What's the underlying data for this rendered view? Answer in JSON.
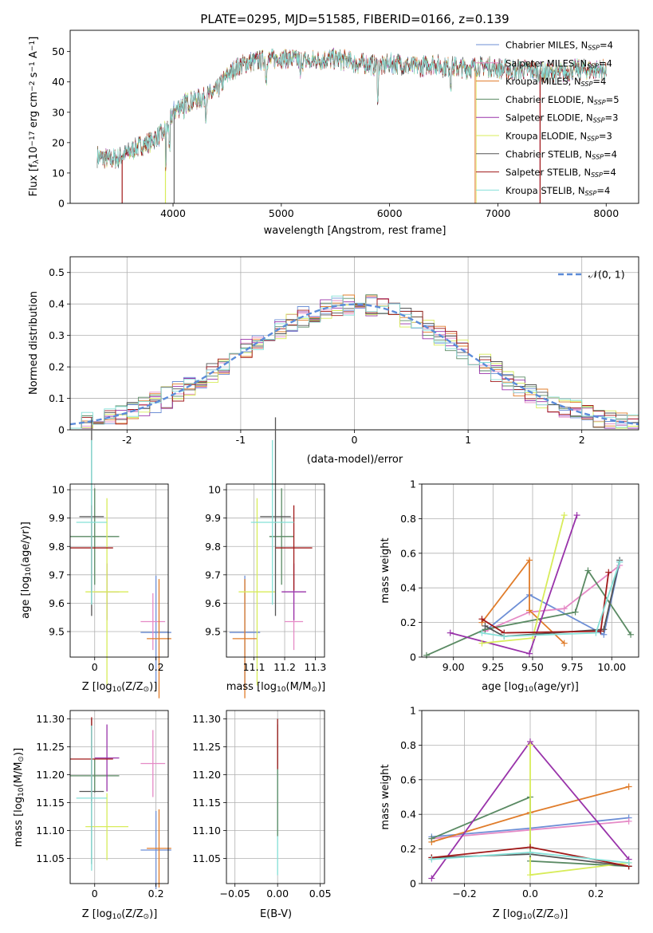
{
  "figure": {
    "title": "PLATE=0295, MJD=51585, FIBERID=0166, z=0.139"
  },
  "series_colors": {
    "Chabrier MILES": "#6d8fd6",
    "Salpeter MILES": "#e58ac6",
    "Kroupa MILES": "#e07c2a",
    "Chabrier ELODIE": "#5a8a63",
    "Salpeter ELODIE": "#9933aa",
    "Kroupa ELODIE": "#d8ec5a",
    "Chabrier STELIB": "#555555",
    "Salpeter STELIB": "#a11919",
    "Kroupa STELIB": "#85e0d8"
  },
  "chart_data": [
    {
      "id": "spectrum",
      "type": "line",
      "title": "PLATE=0295, MJD=51585, FIBERID=0166, z=0.139",
      "xlabel": "wavelength [Angstrom, rest frame]",
      "ylabel_main": "Flux [f",
      "ylabel_sub": "λ",
      "ylabel_rest": "10",
      "ylabel_exp1": "−17",
      "ylabel_mid": " erg cm",
      "ylabel_exp2": "−2",
      "ylabel_mid2": " s",
      "ylabel_exp3": "−1",
      "ylabel_end": " A",
      "ylabel_exp4": "−1",
      "ylabel_close": "]",
      "xlim": [
        3050,
        8300
      ],
      "ylim": [
        0,
        57
      ],
      "xticks": [
        4000,
        5000,
        6000,
        7000,
        8000
      ],
      "yticks": [
        0,
        10,
        20,
        30,
        40,
        50
      ],
      "legend_position": "top-right",
      "legend": [
        {
          "label": "Chabrier MILES, N",
          "sub": "SSP",
          "tail": "=4"
        },
        {
          "label": "Salpeter MILES, N",
          "sub": "SSP",
          "tail": "=4"
        },
        {
          "label": "Kroupa MILES, N",
          "sub": "SSP",
          "tail": "=4"
        },
        {
          "label": "Chabrier ELODIE, N",
          "sub": "SSP",
          "tail": "=5"
        },
        {
          "label": "Salpeter ELODIE, N",
          "sub": "SSP",
          "tail": "=3"
        },
        {
          "label": "Kroupa ELODIE, N",
          "sub": "SSP",
          "tail": "=3"
        },
        {
          "label": "Chabrier STELIB, N",
          "sub": "SSP",
          "tail": "=4"
        },
        {
          "label": "Salpeter STELIB, N",
          "sub": "SSP",
          "tail": "=4"
        },
        {
          "label": "Kroupa STELIB, N",
          "sub": "SSP",
          "tail": "=4"
        }
      ],
      "continuum": [
        [
          3300,
          15.5
        ],
        [
          3400,
          14.5
        ],
        [
          3500,
          15
        ],
        [
          3600,
          17
        ],
        [
          3700,
          19
        ],
        [
          3800,
          20.5
        ],
        [
          3900,
          23
        ],
        [
          3950,
          25
        ],
        [
          4000,
          30
        ],
        [
          4100,
          33
        ],
        [
          4200,
          34
        ],
        [
          4300,
          35
        ],
        [
          4400,
          37
        ],
        [
          4500,
          42
        ],
        [
          4600,
          45
        ],
        [
          4700,
          46.5
        ],
        [
          4800,
          47
        ],
        [
          4900,
          47.5
        ],
        [
          5000,
          48
        ],
        [
          5100,
          47.5
        ],
        [
          5200,
          47
        ],
        [
          5300,
          47
        ],
        [
          5400,
          47.5
        ],
        [
          5500,
          47.5
        ],
        [
          5600,
          47
        ],
        [
          5700,
          46
        ],
        [
          5800,
          46
        ],
        [
          5900,
          45
        ],
        [
          6000,
          46
        ],
        [
          6100,
          46
        ],
        [
          6200,
          45
        ],
        [
          6300,
          45
        ],
        [
          6400,
          46
        ],
        [
          6500,
          45
        ],
        [
          6600,
          45
        ],
        [
          6700,
          44.5
        ],
        [
          6800,
          45
        ],
        [
          6900,
          45
        ],
        [
          7000,
          44.5
        ],
        [
          7100,
          44
        ],
        [
          7200,
          44
        ],
        [
          7300,
          44
        ],
        [
          7400,
          43
        ],
        [
          7500,
          43
        ],
        [
          7600,
          43
        ],
        [
          7700,
          44
        ],
        [
          7800,
          44
        ],
        [
          7900,
          44
        ],
        [
          8000,
          44
        ]
      ]
    },
    {
      "id": "residuals",
      "type": "bar",
      "xlabel": "(data-model)/error",
      "ylabel": "Normed distribution",
      "xlim": [
        -2.5,
        2.5
      ],
      "ylim": [
        0,
        0.55
      ],
      "xticks": [
        -2,
        -1,
        0,
        1,
        2
      ],
      "yticks": [
        0.0,
        0.1,
        0.2,
        0.3,
        0.4,
        0.5
      ],
      "grid": true,
      "legend_position": "top-right",
      "legend": [
        {
          "label": "𝒩(0, 1)"
        }
      ],
      "bin_width": 0.1
    },
    {
      "id": "age_vs_Z",
      "type": "scatter",
      "xlabel": "Z [log",
      "xlabel_sub": "10",
      "xlabel_rest": "(Z/Z",
      "xlabel_sub2": "⊙",
      "xlabel_end": ")]",
      "ylabel": "age  [log",
      "ylabel_sub": "10",
      "ylabel_rest": "(age/yr)]",
      "xlim": [
        -0.08,
        0.24
      ],
      "ylim": [
        9.41,
        10.02
      ],
      "xticks": [
        0.0,
        0.2
      ],
      "yticks": [
        9.5,
        9.6,
        9.7,
        9.8,
        9.9,
        10.0
      ],
      "grid": true,
      "points": [
        {
          "series": "Chabrier MILES",
          "x": 0.2,
          "y": 9.497,
          "xerr": 0.05,
          "yerr": 0.2
        },
        {
          "series": "Salpeter MILES",
          "x": 0.19,
          "y": 9.535,
          "xerr": 0.04,
          "yerr": 0.1
        },
        {
          "series": "Kroupa MILES",
          "x": 0.21,
          "y": 9.475,
          "xerr": 0.04,
          "yerr": 0.21
        },
        {
          "series": "Chabrier ELODIE",
          "x": 0.0,
          "y": 9.835,
          "xerr": 0.08,
          "yerr": 0.17
        },
        {
          "series": "Salpeter ELODIE",
          "x": 0.04,
          "y": 9.64,
          "xerr": 0.04,
          "yerr": 0.1
        },
        {
          "series": "Kroupa ELODIE",
          "x": 0.04,
          "y": 9.64,
          "xerr": 0.07,
          "yerr": 0.33
        },
        {
          "series": "Chabrier STELIB",
          "x": -0.01,
          "y": 9.905,
          "xerr": 0.04,
          "yerr": 0.35
        },
        {
          "series": "Salpeter STELIB",
          "x": -0.01,
          "y": 9.795,
          "xerr": 0.07,
          "yerr": 0.15
        },
        {
          "series": "Kroupa STELIB",
          "x": -0.01,
          "y": 9.885,
          "xerr": 0.05,
          "yerr": 0.29
        }
      ]
    },
    {
      "id": "age_vs_mass",
      "type": "scatter",
      "xlabel": "mass [log",
      "xlabel_sub": "10",
      "xlabel_rest": "(M/M",
      "xlabel_sub2": "⊙",
      "xlabel_end": ")]",
      "xlim": [
        11.01,
        11.33
      ],
      "ylim": [
        9.41,
        10.02
      ],
      "xticks": [
        11.1,
        11.2,
        11.3
      ],
      "yticks": [
        9.5,
        9.6,
        9.7,
        9.8,
        9.9,
        10.0
      ],
      "grid": true,
      "points": [
        {
          "series": "Chabrier MILES",
          "x": 11.07,
          "y": 9.497,
          "xerr": 0.05,
          "yerr": 0.2
        },
        {
          "series": "Salpeter MILES",
          "x": 11.23,
          "y": 9.535,
          "xerr": 0.03,
          "yerr": 0.1
        },
        {
          "series": "Kroupa MILES",
          "x": 11.07,
          "y": 9.475,
          "xerr": 0.04,
          "yerr": 0.21
        },
        {
          "series": "Chabrier ELODIE",
          "x": 11.19,
          "y": 9.835,
          "xerr": 0.04,
          "yerr": 0.17
        },
        {
          "series": "Salpeter ELODIE",
          "x": 11.23,
          "y": 9.64,
          "xerr": 0.04,
          "yerr": 0.1
        },
        {
          "series": "Kroupa ELODIE",
          "x": 11.11,
          "y": 9.64,
          "xerr": 0.06,
          "yerr": 0.33
        },
        {
          "series": "Chabrier STELIB",
          "x": 11.17,
          "y": 9.905,
          "xerr": 0.05,
          "yerr": 0.35
        },
        {
          "series": "Salpeter STELIB",
          "x": 11.23,
          "y": 9.795,
          "xerr": 0.06,
          "yerr": 0.15
        },
        {
          "series": "Kroupa STELIB",
          "x": 11.16,
          "y": 9.885,
          "xerr": 0.07,
          "yerr": 0.29
        }
      ]
    },
    {
      "id": "massweight_vs_age",
      "type": "line",
      "xlabel": "age  [log",
      "xlabel_sub": "10",
      "xlabel_rest": "(age/yr)]",
      "ylabel": "mass weight",
      "xlim": [
        8.8,
        10.17
      ],
      "ylim": [
        0,
        1
      ],
      "xticks": [
        9.0,
        9.25,
        9.5,
        9.75,
        10.0
      ],
      "xticklabels": [
        "9.00",
        "9.25",
        "9.50",
        "9.75",
        "10.00"
      ],
      "yticks": [
        0.0,
        0.2,
        0.4,
        0.6,
        0.8,
        1.0
      ],
      "grid": true,
      "series": [
        {
          "name": "Chabrier MILES",
          "x": [
            9.2,
            9.48,
            9.95,
            10.05
          ],
          "y": [
            0.15,
            0.36,
            0.13,
            0.55
          ]
        },
        {
          "name": "Salpeter MILES",
          "x": [
            9.2,
            9.48,
            9.7,
            10.05
          ],
          "y": [
            0.15,
            0.26,
            0.28,
            0.53
          ]
        },
        {
          "name": "Kroupa MILES",
          "x": [
            9.18,
            9.48,
            9.48,
            9.7
          ],
          "y": [
            0.2,
            0.56,
            0.27,
            0.08
          ]
        },
        {
          "name": "Chabrier ELODIE",
          "x": [
            8.83,
            9.2,
            9.77,
            9.85,
            10.12
          ],
          "y": [
            0.01,
            0.16,
            0.26,
            0.5,
            0.13
          ]
        },
        {
          "name": "Salpeter ELODIE",
          "x": [
            8.98,
            9.48,
            9.78
          ],
          "y": [
            0.14,
            0.02,
            0.82
          ]
        },
        {
          "name": "Kroupa ELODIE",
          "x": [
            9.18,
            9.5,
            9.7
          ],
          "y": [
            0.08,
            0.11,
            0.82
          ]
        },
        {
          "name": "Chabrier STELIB",
          "x": [
            9.2,
            9.32,
            9.95,
            10.05
          ],
          "y": [
            0.18,
            0.12,
            0.16,
            0.56
          ]
        },
        {
          "name": "Salpeter STELIB",
          "x": [
            9.18,
            9.32,
            9.93,
            9.98
          ],
          "y": [
            0.22,
            0.14,
            0.15,
            0.49
          ]
        },
        {
          "name": "Kroupa STELIB",
          "x": [
            9.18,
            9.32,
            9.9,
            10.05
          ],
          "y": [
            0.14,
            0.12,
            0.14,
            0.55
          ]
        }
      ]
    },
    {
      "id": "mass_vs_Z",
      "type": "scatter",
      "xlabel": "Z [log",
      "xlabel_sub": "10",
      "xlabel_rest": "(Z/Z",
      "xlabel_sub2": "⊙",
      "xlabel_end": ")]",
      "ylabel": "mass [log",
      "ylabel_sub": "10",
      "ylabel_rest": "(M/M",
      "ylabel_sub2": "⊙",
      "ylabel_end": ")]",
      "xlim": [
        -0.08,
        0.24
      ],
      "ylim": [
        11.005,
        11.315
      ],
      "xticks": [
        0.0,
        0.2
      ],
      "yticks": [
        11.05,
        11.1,
        11.15,
        11.2,
        11.25,
        11.3
      ],
      "yticklabels": [
        "11.05",
        "11.10",
        "11.15",
        "11.20",
        "11.25",
        "11.30"
      ],
      "grid": true,
      "points": [
        {
          "series": "Chabrier MILES",
          "x": 0.2,
          "y": 11.065,
          "xerr": 0.05,
          "yerr": 0.07
        },
        {
          "series": "Salpeter MILES",
          "x": 0.19,
          "y": 11.22,
          "xerr": 0.04,
          "yerr": 0.06
        },
        {
          "series": "Kroupa MILES",
          "x": 0.21,
          "y": 11.068,
          "xerr": 0.04,
          "yerr": 0.07
        },
        {
          "series": "Chabrier ELODIE",
          "x": 0.0,
          "y": 11.198,
          "xerr": 0.08,
          "yerr": 0.03
        },
        {
          "series": "Salpeter ELODIE",
          "x": 0.04,
          "y": 11.23,
          "xerr": 0.04,
          "yerr": 0.06
        },
        {
          "series": "Kroupa ELODIE",
          "x": 0.04,
          "y": 11.107,
          "xerr": 0.07,
          "yerr": 0.06
        },
        {
          "series": "Chabrier STELIB",
          "x": -0.01,
          "y": 11.17,
          "xerr": 0.04,
          "yerr": 0.13
        },
        {
          "series": "Salpeter STELIB",
          "x": -0.01,
          "y": 11.228,
          "xerr": 0.07,
          "yerr": 0.075
        },
        {
          "series": "Kroupa STELIB",
          "x": -0.01,
          "y": 11.158,
          "xerr": 0.05,
          "yerr": 0.13
        }
      ]
    },
    {
      "id": "mass_vs_EBV",
      "type": "scatter",
      "xlabel": "E(B-V)",
      "xlim": [
        -0.06,
        0.055
      ],
      "ylim": [
        11.005,
        11.315
      ],
      "xticks": [
        -0.05,
        0.0,
        0.05
      ],
      "xticklabels": [
        "−0.05",
        "0.00",
        "0.05"
      ],
      "yticks": [
        11.05,
        11.1,
        11.15,
        11.2,
        11.25,
        11.3
      ],
      "yticklabels": [
        "11.05",
        "11.10",
        "11.15",
        "11.20",
        "11.25",
        "11.30"
      ],
      "grid": true,
      "points": [
        {
          "series": "Kroupa STELIB",
          "x": 0.0,
          "y": 11.16,
          "xerr": 0,
          "yerr": 0.14
        },
        {
          "series": "Chabrier ELODIE",
          "x": 0.0,
          "y": 11.19,
          "xerr": 0,
          "yerr": 0.1
        },
        {
          "series": "Salpeter STELIB",
          "x": 0.0,
          "y": 11.255,
          "xerr": 0,
          "yerr": 0.045
        }
      ]
    },
    {
      "id": "massweight_vs_Z",
      "type": "line",
      "xlabel": "Z [log",
      "xlabel_sub": "10",
      "xlabel_rest": "(Z/Z",
      "xlabel_sub2": "⊙",
      "xlabel_end": ")]",
      "ylabel": "mass weight",
      "xlim": [
        -0.33,
        0.33
      ],
      "ylim": [
        0,
        1
      ],
      "xticks": [
        -0.2,
        0.0,
        0.2
      ],
      "xticklabels": [
        "−0.2",
        "0.0",
        "0.2"
      ],
      "yticks": [
        0.0,
        0.2,
        0.4,
        0.6,
        0.8,
        1.0
      ],
      "grid": true,
      "series": [
        {
          "name": "Chabrier MILES",
          "x": [
            -0.3,
            0.0,
            0.3
          ],
          "y": [
            0.27,
            0.32,
            0.38
          ]
        },
        {
          "name": "Salpeter MILES",
          "x": [
            -0.3,
            0.0,
            0.3
          ],
          "y": [
            0.26,
            0.31,
            0.36
          ]
        },
        {
          "name": "Kroupa MILES",
          "x": [
            -0.3,
            0.0,
            0.3
          ],
          "y": [
            0.24,
            0.41,
            0.56
          ]
        },
        {
          "name": "Chabrier ELODIE",
          "x": [
            -0.3,
            0.0,
            0.0,
            0.3
          ],
          "y": [
            0.26,
            0.5,
            0.13,
            0.1
          ]
        },
        {
          "name": "Salpeter ELODIE",
          "x": [
            -0.3,
            0.0,
            0.3
          ],
          "y": [
            0.03,
            0.82,
            0.14
          ]
        },
        {
          "name": "Kroupa ELODIE",
          "x": [
            0.0,
            0.0,
            0.3
          ],
          "y": [
            0.8,
            0.05,
            0.12
          ]
        },
        {
          "name": "Chabrier STELIB",
          "x": [
            -0.3,
            0.0,
            0.3
          ],
          "y": [
            0.15,
            0.17,
            0.1
          ]
        },
        {
          "name": "Salpeter STELIB",
          "x": [
            -0.3,
            0.0,
            0.3
          ],
          "y": [
            0.15,
            0.21,
            0.1
          ]
        },
        {
          "name": "Kroupa STELIB",
          "x": [
            -0.3,
            0.0,
            0.3
          ],
          "y": [
            0.14,
            0.18,
            0.12
          ]
        }
      ]
    }
  ]
}
